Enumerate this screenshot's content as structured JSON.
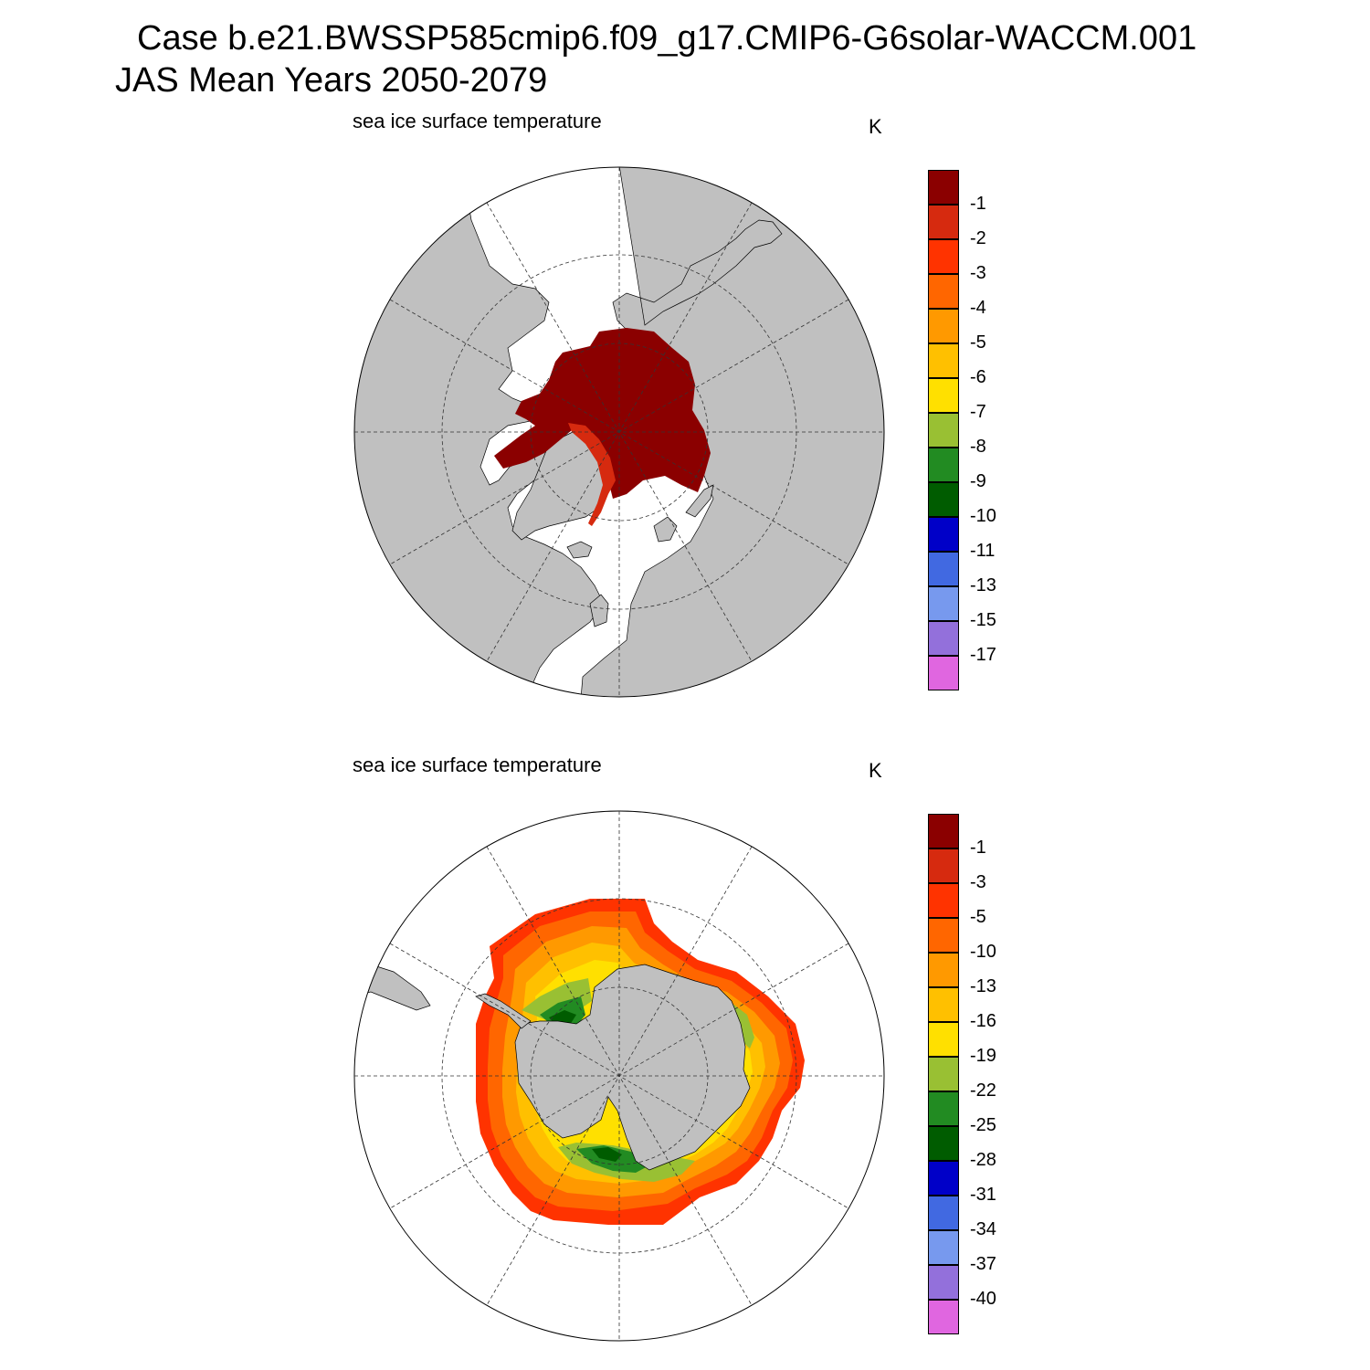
{
  "header": {
    "title_line1": "Case b.e21.BWSSP585cmip6.f09_g17.CMIP6-G6solar-WACCM.001",
    "title_line2": "JAS Mean   Years 2050-2079"
  },
  "panels": [
    {
      "hemisphere": "north",
      "variable_title": "sea ice surface temperature",
      "units": "K",
      "colorbar": {
        "colors": [
          "#8b0000",
          "#d62a0f",
          "#ff3300",
          "#ff6600",
          "#ff9900",
          "#ffc000",
          "#ffe000",
          "#99c033",
          "#228b22",
          "#005c00",
          "#0000c8",
          "#4169e1",
          "#7799ee",
          "#9370db",
          "#e066e0"
        ],
        "labels": [
          "-1",
          "-2",
          "-3",
          "-4",
          "-5",
          "-6",
          "-7",
          "-8",
          "-9",
          "-10",
          "-11",
          "-13",
          "-15",
          "-17"
        ]
      }
    },
    {
      "hemisphere": "south",
      "variable_title": "sea ice surface temperature",
      "units": "K",
      "colorbar": {
        "colors": [
          "#8b0000",
          "#d62a0f",
          "#ff3300",
          "#ff6600",
          "#ff9900",
          "#ffc000",
          "#ffe000",
          "#99c033",
          "#228b22",
          "#005c00",
          "#0000c8",
          "#4169e1",
          "#7799ee",
          "#9370db",
          "#e066e0"
        ],
        "labels": [
          "-1",
          "-3",
          "-5",
          "-10",
          "-13",
          "-16",
          "-19",
          "-22",
          "-25",
          "-28",
          "-31",
          "-34",
          "-37",
          "-40"
        ]
      }
    }
  ],
  "map_style": {
    "land_color": "#c0c0c0",
    "ocean_color": "#ffffff",
    "graticule_color": "#333333"
  }
}
